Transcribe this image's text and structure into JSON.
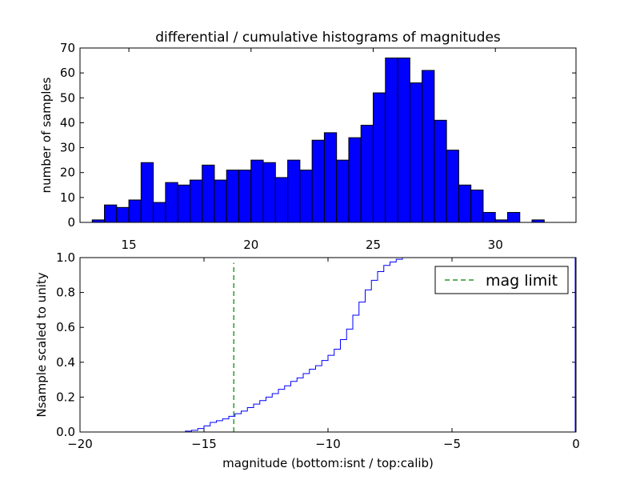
{
  "chart_data": [
    {
      "type": "bar",
      "title": "differential / cumulative histograms of magnitudes",
      "xlabel": "",
      "ylabel": "number of samples",
      "xlim": [
        13.0,
        33.3
      ],
      "ylim": [
        0,
        70
      ],
      "xticks": [
        15,
        20,
        25,
        30
      ],
      "yticks": [
        0,
        10,
        20,
        30,
        40,
        50,
        60,
        70
      ],
      "bin_start": 13.5,
      "bin_width": 0.5,
      "values": [
        1,
        7,
        6,
        9,
        24,
        8,
        16,
        15,
        17,
        23,
        17,
        21,
        21,
        25,
        24,
        18,
        25,
        21,
        33,
        36,
        25,
        34,
        39,
        52,
        66,
        66,
        56,
        61,
        41,
        29,
        15,
        13,
        4,
        1,
        4,
        0,
        1,
        0
      ],
      "bar_color": "#0000ff",
      "grid": false
    },
    {
      "type": "line",
      "title": "",
      "xlabel": "magnitude (bottom:isnt / top:calib)",
      "ylabel": "Nsample scaled to unity",
      "xlim": [
        -20,
        0
      ],
      "ylim": [
        0.0,
        1.0
      ],
      "xticks": [
        -20,
        -15,
        -10,
        -5,
        0
      ],
      "yticks": [
        0.0,
        0.2,
        0.4,
        0.6,
        0.8,
        1.0
      ],
      "series": [
        {
          "name": "cumulative",
          "style": "step",
          "color": "#0000ff",
          "x": [
            -20.0,
            -16.0,
            -15.75,
            -15.5,
            -15.25,
            -15.0,
            -14.75,
            -14.5,
            -14.25,
            -14.0,
            -13.75,
            -13.5,
            -13.25,
            -13.0,
            -12.75,
            -12.5,
            -12.25,
            -12.0,
            -11.75,
            -11.5,
            -11.25,
            -11.0,
            -10.75,
            -10.5,
            -10.25,
            -10.0,
            -9.75,
            -9.5,
            -9.25,
            -9.0,
            -8.75,
            -8.5,
            -8.25,
            -8.0,
            -7.75,
            -7.5,
            -7.25,
            -7.0,
            0.0
          ],
          "y": [
            0.0,
            0.0,
            0.005,
            0.01,
            0.02,
            0.035,
            0.055,
            0.065,
            0.075,
            0.09,
            0.105,
            0.12,
            0.14,
            0.16,
            0.18,
            0.2,
            0.22,
            0.245,
            0.265,
            0.29,
            0.31,
            0.335,
            0.36,
            0.38,
            0.41,
            0.44,
            0.475,
            0.53,
            0.59,
            0.67,
            0.745,
            0.815,
            0.87,
            0.92,
            0.955,
            0.975,
            0.99,
            1.0,
            1.0
          ]
        },
        {
          "name": "mag limit",
          "style": "dashed-vertical",
          "color": "#008000",
          "x": [
            -13.8,
            -13.8
          ],
          "y": [
            0.0,
            0.97
          ]
        }
      ],
      "legend": {
        "entries": [
          "mag limit"
        ],
        "placement": "top-right"
      },
      "grid": false
    }
  ]
}
